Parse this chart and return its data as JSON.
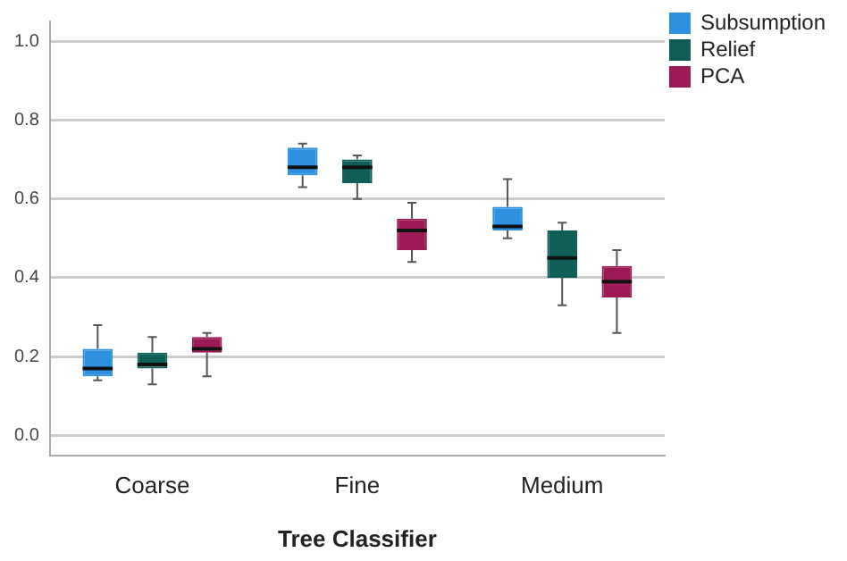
{
  "chart_data": {
    "type": "box",
    "xlabel": "Tree Classifier",
    "categories": [
      "Coarse",
      "Fine",
      "Medium"
    ],
    "series": [
      {
        "name": "Subsumption",
        "color": "#2e90e0",
        "boxes": [
          {
            "low": 0.14,
            "q1": 0.15,
            "median": 0.17,
            "q3": 0.22,
            "high": 0.28
          },
          {
            "low": 0.63,
            "q1": 0.66,
            "median": 0.68,
            "q3": 0.73,
            "high": 0.74
          },
          {
            "low": 0.5,
            "q1": 0.52,
            "median": 0.53,
            "q3": 0.58,
            "high": 0.65
          }
        ]
      },
      {
        "name": "Relief",
        "color": "#0f5e58",
        "boxes": [
          {
            "low": 0.13,
            "q1": 0.17,
            "median": 0.18,
            "q3": 0.21,
            "high": 0.25
          },
          {
            "low": 0.6,
            "q1": 0.64,
            "median": 0.68,
            "q3": 0.7,
            "high": 0.71
          },
          {
            "low": 0.33,
            "q1": 0.4,
            "median": 0.45,
            "q3": 0.52,
            "high": 0.54
          }
        ]
      },
      {
        "name": "PCA",
        "color": "#9c1a55",
        "boxes": [
          {
            "low": 0.15,
            "q1": 0.21,
            "median": 0.22,
            "q3": 0.25,
            "high": 0.26
          },
          {
            "low": 0.44,
            "q1": 0.47,
            "median": 0.52,
            "q3": 0.55,
            "high": 0.59
          },
          {
            "low": 0.26,
            "q1": 0.35,
            "median": 0.39,
            "q3": 0.43,
            "high": 0.47
          }
        ]
      }
    ],
    "ylim": [
      -0.05,
      1.05
    ],
    "yticks": [
      {
        "value": 0,
        "label": "0.0"
      },
      {
        "value": 0.2,
        "label": "0.2"
      },
      {
        "value": 0.4,
        "label": "0.4"
      },
      {
        "value": 0.6,
        "label": "0.6"
      },
      {
        "value": 0.8,
        "label": "0.8"
      },
      {
        "value": 1,
        "label": "1.0"
      }
    ],
    "grid": "y",
    "legend": "top right"
  }
}
